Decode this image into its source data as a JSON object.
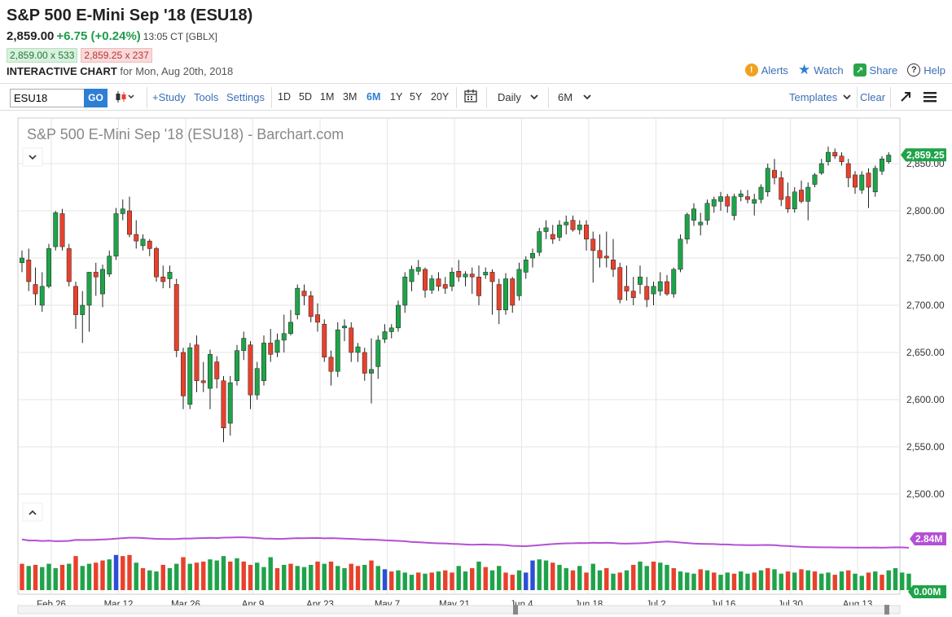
{
  "header": {
    "title": "S&P 500 E-Mini Sep '18 (ESU18)",
    "last": "2,859.00",
    "change": "+6.75 (+0.24%)",
    "time": "13:05 CT [GBLX]",
    "bid": "2,859.00 x 533",
    "ask": "2,859.25 x 237",
    "ic_label": "INTERACTIVE CHART",
    "ic_date": "for Mon, Aug 20th, 2018"
  },
  "actions": {
    "alerts": "Alerts",
    "watch": "Watch",
    "share": "Share",
    "help": "Help"
  },
  "toolbar": {
    "symbol_value": "ESU18",
    "go_label": "GO",
    "study": "+Study",
    "tools": "Tools",
    "settings": "Settings",
    "periods": [
      "1D",
      "5D",
      "1M",
      "3M",
      "6M",
      "1Y",
      "5Y",
      "20Y"
    ],
    "active_period": "6M",
    "interval": "Daily",
    "range": "6M",
    "templates": "Templates",
    "clear": "Clear"
  },
  "colors": {
    "up": "#1fa34a",
    "down": "#e8412c",
    "volume_blue": "#2b4fd6",
    "ma": "#b44fd6",
    "accent": "#2d7fd3"
  },
  "chart_data": {
    "type": "candlestick",
    "title": "S&P 500 E-Mini Sep '18 (ESU18) - Barchart.com",
    "price_ylim": [
      2500,
      2900
    ],
    "price_ticks": [
      "2,850.00",
      "2,800.00",
      "2,750.00",
      "2,700.00",
      "2,650.00",
      "2,600.00",
      "2,550.00",
      "2,500.00"
    ],
    "last_price_label": "2,859.25",
    "last_price_value": 2859.25,
    "x_ticks": [
      {
        "label": "Feb 26",
        "index": 4
      },
      {
        "label": "Mar 12",
        "index": 14
      },
      {
        "label": "Mar 26",
        "index": 24
      },
      {
        "label": "Apr 9",
        "index": 34
      },
      {
        "label": "Apr 23",
        "index": 44
      },
      {
        "label": "May 7",
        "index": 54
      },
      {
        "label": "May 21",
        "index": 64
      },
      {
        "label": "Jun 4",
        "index": 74
      },
      {
        "label": "Jun 18",
        "index": 84
      },
      {
        "label": "Jul 2",
        "index": 94
      },
      {
        "label": "Jul 16",
        "index": 104
      },
      {
        "label": "Jul 30",
        "index": 114
      },
      {
        "label": "Aug 13",
        "index": 124
      }
    ],
    "candles": [
      {
        "o": 2745,
        "h": 2758,
        "l": 2735,
        "c": 2750
      },
      {
        "o": 2748,
        "h": 2760,
        "l": 2715,
        "c": 2725
      },
      {
        "o": 2722,
        "h": 2740,
        "l": 2700,
        "c": 2712
      },
      {
        "o": 2700,
        "h": 2735,
        "l": 2693,
        "c": 2720
      },
      {
        "o": 2720,
        "h": 2765,
        "l": 2718,
        "c": 2760
      },
      {
        "o": 2762,
        "h": 2800,
        "l": 2758,
        "c": 2798
      },
      {
        "o": 2797,
        "h": 2802,
        "l": 2758,
        "c": 2762
      },
      {
        "o": 2760,
        "h": 2765,
        "l": 2720,
        "c": 2725
      },
      {
        "o": 2720,
        "h": 2725,
        "l": 2675,
        "c": 2690
      },
      {
        "o": 2690,
        "h": 2715,
        "l": 2660,
        "c": 2700
      },
      {
        "o": 2700,
        "h": 2735,
        "l": 2672,
        "c": 2735
      },
      {
        "o": 2735,
        "h": 2745,
        "l": 2710,
        "c": 2730
      },
      {
        "o": 2712,
        "h": 2743,
        "l": 2698,
        "c": 2738
      },
      {
        "o": 2733,
        "h": 2758,
        "l": 2730,
        "c": 2752
      },
      {
        "o": 2752,
        "h": 2803,
        "l": 2748,
        "c": 2797
      },
      {
        "o": 2797,
        "h": 2812,
        "l": 2790,
        "c": 2802
      },
      {
        "o": 2800,
        "h": 2815,
        "l": 2772,
        "c": 2775
      },
      {
        "o": 2775,
        "h": 2790,
        "l": 2760,
        "c": 2768
      },
      {
        "o": 2763,
        "h": 2775,
        "l": 2758,
        "c": 2770
      },
      {
        "o": 2768,
        "h": 2770,
        "l": 2752,
        "c": 2760
      },
      {
        "o": 2760,
        "h": 2762,
        "l": 2725,
        "c": 2730
      },
      {
        "o": 2730,
        "h": 2742,
        "l": 2718,
        "c": 2725
      },
      {
        "o": 2728,
        "h": 2742,
        "l": 2718,
        "c": 2735
      },
      {
        "o": 2722,
        "h": 2728,
        "l": 2645,
        "c": 2652
      },
      {
        "o": 2650,
        "h": 2655,
        "l": 2590,
        "c": 2604
      },
      {
        "o": 2595,
        "h": 2660,
        "l": 2590,
        "c": 2655
      },
      {
        "o": 2658,
        "h": 2668,
        "l": 2608,
        "c": 2620
      },
      {
        "o": 2620,
        "h": 2640,
        "l": 2608,
        "c": 2618
      },
      {
        "o": 2612,
        "h": 2653,
        "l": 2590,
        "c": 2648
      },
      {
        "o": 2640,
        "h": 2646,
        "l": 2612,
        "c": 2622
      },
      {
        "o": 2620,
        "h": 2625,
        "l": 2555,
        "c": 2570
      },
      {
        "o": 2575,
        "h": 2625,
        "l": 2562,
        "c": 2618
      },
      {
        "o": 2620,
        "h": 2658,
        "l": 2615,
        "c": 2652
      },
      {
        "o": 2652,
        "h": 2672,
        "l": 2642,
        "c": 2665
      },
      {
        "o": 2658,
        "h": 2662,
        "l": 2590,
        "c": 2605
      },
      {
        "o": 2605,
        "h": 2640,
        "l": 2600,
        "c": 2633
      },
      {
        "o": 2620,
        "h": 2668,
        "l": 2615,
        "c": 2660
      },
      {
        "o": 2660,
        "h": 2675,
        "l": 2640,
        "c": 2648
      },
      {
        "o": 2650,
        "h": 2670,
        "l": 2645,
        "c": 2663
      },
      {
        "o": 2663,
        "h": 2690,
        "l": 2650,
        "c": 2670
      },
      {
        "o": 2670,
        "h": 2695,
        "l": 2668,
        "c": 2682
      },
      {
        "o": 2690,
        "h": 2722,
        "l": 2685,
        "c": 2718
      },
      {
        "o": 2715,
        "h": 2722,
        "l": 2700,
        "c": 2710
      },
      {
        "o": 2710,
        "h": 2715,
        "l": 2682,
        "c": 2688
      },
      {
        "o": 2690,
        "h": 2702,
        "l": 2672,
        "c": 2682
      },
      {
        "o": 2680,
        "h": 2685,
        "l": 2640,
        "c": 2645
      },
      {
        "o": 2645,
        "h": 2652,
        "l": 2615,
        "c": 2630
      },
      {
        "o": 2630,
        "h": 2682,
        "l": 2624,
        "c": 2674
      },
      {
        "o": 2676,
        "h": 2685,
        "l": 2662,
        "c": 2678
      },
      {
        "o": 2676,
        "h": 2682,
        "l": 2640,
        "c": 2650
      },
      {
        "o": 2650,
        "h": 2660,
        "l": 2640,
        "c": 2656
      },
      {
        "o": 2650,
        "h": 2655,
        "l": 2620,
        "c": 2628
      },
      {
        "o": 2628,
        "h": 2665,
        "l": 2596,
        "c": 2632
      },
      {
        "o": 2635,
        "h": 2668,
        "l": 2622,
        "c": 2663
      },
      {
        "o": 2664,
        "h": 2680,
        "l": 2660,
        "c": 2672
      },
      {
        "o": 2672,
        "h": 2680,
        "l": 2665,
        "c": 2676
      },
      {
        "o": 2676,
        "h": 2705,
        "l": 2672,
        "c": 2700
      },
      {
        "o": 2700,
        "h": 2735,
        "l": 2692,
        "c": 2730
      },
      {
        "o": 2725,
        "h": 2742,
        "l": 2715,
        "c": 2738
      },
      {
        "o": 2736,
        "h": 2748,
        "l": 2732,
        "c": 2740
      },
      {
        "o": 2738,
        "h": 2740,
        "l": 2708,
        "c": 2716
      },
      {
        "o": 2716,
        "h": 2732,
        "l": 2712,
        "c": 2728
      },
      {
        "o": 2728,
        "h": 2735,
        "l": 2715,
        "c": 2720
      },
      {
        "o": 2722,
        "h": 2730,
        "l": 2712,
        "c": 2718
      },
      {
        "o": 2720,
        "h": 2740,
        "l": 2715,
        "c": 2735
      },
      {
        "o": 2736,
        "h": 2748,
        "l": 2725,
        "c": 2730
      },
      {
        "o": 2730,
        "h": 2736,
        "l": 2720,
        "c": 2733
      },
      {
        "o": 2733,
        "h": 2740,
        "l": 2712,
        "c": 2730
      },
      {
        "o": 2730,
        "h": 2742,
        "l": 2700,
        "c": 2710
      },
      {
        "o": 2732,
        "h": 2740,
        "l": 2728,
        "c": 2735
      },
      {
        "o": 2735,
        "h": 2738,
        "l": 2690,
        "c": 2725
      },
      {
        "o": 2722,
        "h": 2728,
        "l": 2680,
        "c": 2695
      },
      {
        "o": 2695,
        "h": 2734,
        "l": 2690,
        "c": 2728
      },
      {
        "o": 2728,
        "h": 2730,
        "l": 2692,
        "c": 2700
      },
      {
        "o": 2710,
        "h": 2745,
        "l": 2705,
        "c": 2738
      },
      {
        "o": 2735,
        "h": 2752,
        "l": 2728,
        "c": 2748
      },
      {
        "o": 2750,
        "h": 2760,
        "l": 2740,
        "c": 2755
      },
      {
        "o": 2756,
        "h": 2782,
        "l": 2752,
        "c": 2778
      },
      {
        "o": 2778,
        "h": 2790,
        "l": 2770,
        "c": 2782
      },
      {
        "o": 2775,
        "h": 2785,
        "l": 2765,
        "c": 2770
      },
      {
        "o": 2772,
        "h": 2790,
        "l": 2768,
        "c": 2785
      },
      {
        "o": 2785,
        "h": 2795,
        "l": 2775,
        "c": 2788
      },
      {
        "o": 2790,
        "h": 2795,
        "l": 2778,
        "c": 2780
      },
      {
        "o": 2780,
        "h": 2790,
        "l": 2775,
        "c": 2785
      },
      {
        "o": 2785,
        "h": 2790,
        "l": 2758,
        "c": 2770
      },
      {
        "o": 2770,
        "h": 2778,
        "l": 2724,
        "c": 2758
      },
      {
        "o": 2758,
        "h": 2775,
        "l": 2740,
        "c": 2750
      },
      {
        "o": 2752,
        "h": 2778,
        "l": 2740,
        "c": 2750
      },
      {
        "o": 2748,
        "h": 2770,
        "l": 2730,
        "c": 2738
      },
      {
        "o": 2740,
        "h": 2745,
        "l": 2702,
        "c": 2706
      },
      {
        "o": 2720,
        "h": 2742,
        "l": 2705,
        "c": 2715
      },
      {
        "o": 2715,
        "h": 2730,
        "l": 2700,
        "c": 2708
      },
      {
        "o": 2722,
        "h": 2742,
        "l": 2712,
        "c": 2730
      },
      {
        "o": 2720,
        "h": 2730,
        "l": 2698,
        "c": 2706
      },
      {
        "o": 2712,
        "h": 2725,
        "l": 2700,
        "c": 2720
      },
      {
        "o": 2715,
        "h": 2735,
        "l": 2710,
        "c": 2725
      },
      {
        "o": 2725,
        "h": 2732,
        "l": 2710,
        "c": 2712
      },
      {
        "o": 2712,
        "h": 2740,
        "l": 2708,
        "c": 2738
      },
      {
        "o": 2738,
        "h": 2775,
        "l": 2735,
        "c": 2770
      },
      {
        "o": 2770,
        "h": 2798,
        "l": 2765,
        "c": 2796
      },
      {
        "o": 2790,
        "h": 2808,
        "l": 2784,
        "c": 2802
      },
      {
        "o": 2785,
        "h": 2798,
        "l": 2774,
        "c": 2788
      },
      {
        "o": 2790,
        "h": 2812,
        "l": 2785,
        "c": 2808
      },
      {
        "o": 2805,
        "h": 2815,
        "l": 2798,
        "c": 2812
      },
      {
        "o": 2810,
        "h": 2820,
        "l": 2800,
        "c": 2815
      },
      {
        "o": 2815,
        "h": 2818,
        "l": 2798,
        "c": 2805
      },
      {
        "o": 2795,
        "h": 2818,
        "l": 2790,
        "c": 2815
      },
      {
        "o": 2815,
        "h": 2822,
        "l": 2810,
        "c": 2818
      },
      {
        "o": 2815,
        "h": 2822,
        "l": 2808,
        "c": 2812
      },
      {
        "o": 2808,
        "h": 2818,
        "l": 2795,
        "c": 2812
      },
      {
        "o": 2812,
        "h": 2828,
        "l": 2808,
        "c": 2825
      },
      {
        "o": 2820,
        "h": 2850,
        "l": 2815,
        "c": 2845
      },
      {
        "o": 2843,
        "h": 2855,
        "l": 2828,
        "c": 2835
      },
      {
        "o": 2835,
        "h": 2842,
        "l": 2805,
        "c": 2812
      },
      {
        "o": 2815,
        "h": 2830,
        "l": 2798,
        "c": 2802
      },
      {
        "o": 2802,
        "h": 2825,
        "l": 2798,
        "c": 2820
      },
      {
        "o": 2822,
        "h": 2832,
        "l": 2808,
        "c": 2810
      },
      {
        "o": 2810,
        "h": 2830,
        "l": 2790,
        "c": 2825
      },
      {
        "o": 2828,
        "h": 2840,
        "l": 2825,
        "c": 2838
      },
      {
        "o": 2840,
        "h": 2855,
        "l": 2838,
        "c": 2850
      },
      {
        "o": 2852,
        "h": 2868,
        "l": 2848,
        "c": 2862
      },
      {
        "o": 2862,
        "h": 2866,
        "l": 2855,
        "c": 2858
      },
      {
        "o": 2858,
        "h": 2862,
        "l": 2848,
        "c": 2852
      },
      {
        "o": 2850,
        "h": 2855,
        "l": 2825,
        "c": 2835
      },
      {
        "o": 2838,
        "h": 2842,
        "l": 2818,
        "c": 2825
      },
      {
        "o": 2822,
        "h": 2842,
        "l": 2818,
        "c": 2838
      },
      {
        "o": 2840,
        "h": 2845,
        "l": 2803,
        "c": 2825
      },
      {
        "o": 2820,
        "h": 2848,
        "l": 2815,
        "c": 2845
      },
      {
        "o": 2842,
        "h": 2858,
        "l": 2838,
        "c": 2855
      },
      {
        "o": 2852,
        "h": 2862,
        "l": 2850,
        "c": 2859
      }
    ],
    "volume": {
      "labels": [
        "2.84M",
        "0.00M"
      ],
      "ylim": [
        0,
        3.2
      ],
      "ma_value": 2.84,
      "values": [
        2.4,
        2.2,
        2.3,
        2.1,
        2.4,
        2.0,
        2.3,
        2.4,
        3.1,
        2.2,
        2.4,
        2.5,
        2.7,
        2.8,
        3.2,
        3.1,
        3.2,
        2.5,
        2.0,
        1.8,
        1.7,
        2.3,
        2.0,
        2.4,
        3.0,
        2.4,
        2.5,
        2.6,
        2.8,
        2.7,
        3.1,
        2.6,
        2.9,
        2.6,
        2.3,
        2.5,
        2.1,
        3.0,
        2.0,
        2.3,
        2.4,
        2.2,
        2.1,
        2.3,
        2.6,
        2.4,
        2.6,
        2.2,
        2.0,
        2.4,
        2.2,
        2.3,
        2.7,
        2.2,
        1.9,
        1.7,
        1.8,
        1.6,
        1.4,
        1.6,
        1.5,
        1.6,
        1.7,
        1.8,
        1.6,
        2.2,
        1.7,
        2.0,
        2.6,
        2.1,
        1.8,
        2.2,
        1.6,
        1.4,
        1.8,
        1.6,
        2.7,
        2.8,
        2.7,
        2.5,
        2.3,
        2.0,
        1.8,
        2.2,
        1.6,
        2.4,
        1.8,
        2.0,
        1.5,
        1.6,
        1.8,
        2.3,
        2.6,
        2.2,
        2.6,
        2.5,
        2.3,
        2.0,
        1.7,
        1.6,
        1.5,
        1.9,
        1.8,
        1.6,
        1.4,
        1.6,
        1.5,
        1.7,
        1.5,
        1.6,
        1.8,
        2.0,
        1.9,
        1.5,
        1.7,
        1.6,
        1.9,
        1.8,
        1.7,
        1.5,
        1.6,
        1.4,
        1.7,
        1.8,
        1.5,
        1.3,
        1.6,
        1.7,
        1.4,
        1.8,
        2.0,
        1.6,
        1.5
      ],
      "colors": "rgrgggrgrggrrgbrrgrggrggrgrrgggrgrrgggrgrgggrgrggrrgrgbrgggrgrgrrggrgrggrrgbbggrggrgrggrgrgrggrggrgggrgrggrggrgrggrgrgrggrgrggrgrgg"
    }
  }
}
